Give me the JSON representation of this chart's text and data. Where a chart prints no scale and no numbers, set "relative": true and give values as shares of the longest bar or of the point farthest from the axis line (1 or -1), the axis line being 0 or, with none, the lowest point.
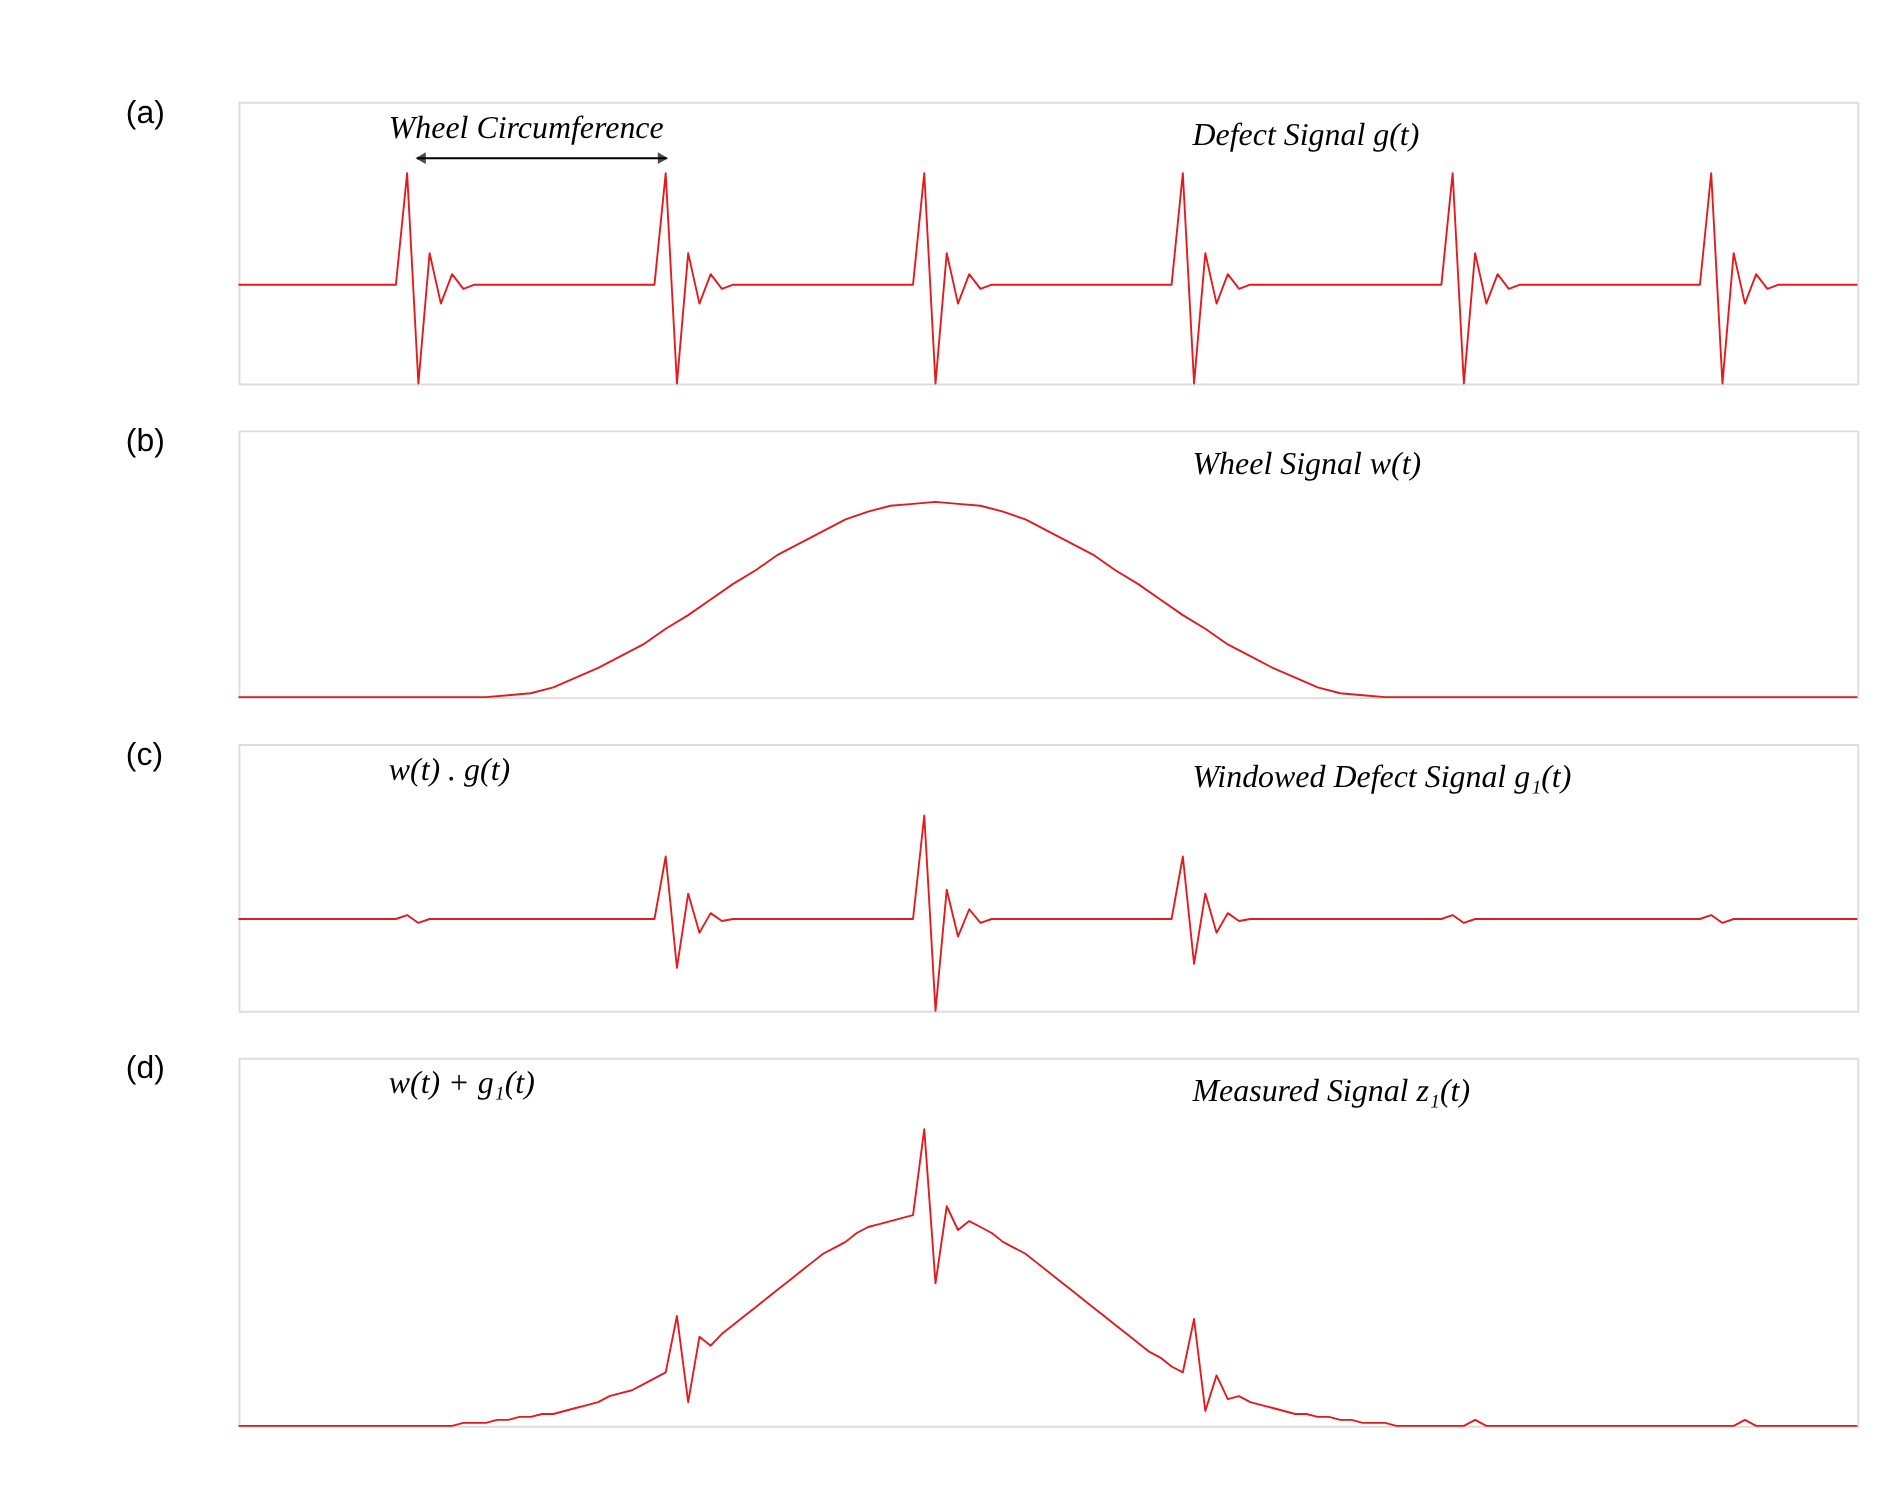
{
  "chart_data": [
    {
      "type": "line",
      "title": "(a)",
      "relative": true,
      "annotations": [
        "Wheel Circumference",
        "Defect Signal g(t)"
      ],
      "categories": [
        null,
        null,
        null,
        null,
        null,
        null,
        null,
        null,
        null,
        null,
        null,
        null,
        null,
        null,
        null,
        null,
        null,
        null,
        null,
        null,
        null,
        null,
        null,
        null,
        null,
        null,
        null,
        null,
        null,
        null,
        null,
        null,
        null,
        null,
        null,
        null,
        null,
        null,
        null,
        null,
        null,
        null,
        null,
        null,
        null,
        null,
        null,
        null,
        null,
        null,
        null,
        null,
        null,
        null,
        null,
        null,
        null,
        null,
        null,
        null,
        null,
        null,
        null,
        null,
        null,
        null,
        null,
        null,
        null,
        null,
        null,
        null,
        null,
        null,
        null,
        null,
        null,
        null,
        null,
        null,
        null,
        null,
        null,
        null,
        null,
        null,
        null,
        null,
        null,
        null,
        null,
        null,
        null,
        null,
        null,
        null,
        null,
        null,
        null,
        null,
        null,
        null,
        null,
        null,
        null,
        null,
        null,
        null,
        null,
        null,
        null,
        null,
        null,
        null,
        null,
        null,
        null,
        null,
        null,
        null,
        null,
        null,
        null,
        null,
        null,
        null,
        null,
        null,
        null,
        null,
        null,
        null,
        null,
        null,
        null,
        null,
        null,
        null,
        null,
        null,
        null,
        null,
        null,
        null,
        null
      ],
      "color": "#e41a1c",
      "values": [
        0.47,
        0.47,
        0.47,
        0.47,
        0.47,
        0.47,
        0.47,
        0.47,
        0.47,
        0.47,
        0.47,
        0.47,
        0.47,
        0.47,
        0.47,
        1,
        0,
        0.62,
        0.38,
        0.52,
        0.45,
        0.47,
        0.47,
        0.47,
        0.47,
        0.47,
        0.47,
        0.47,
        0.47,
        0.47,
        0.47,
        0.47,
        0.47,
        0.47,
        0.47,
        0.47,
        0.47,
        0.47,
        1,
        0,
        0.62,
        0.38,
        0.52,
        0.45,
        0.47,
        0.47,
        0.47,
        0.47,
        0.47,
        0.47,
        0.47,
        0.47,
        0.47,
        0.47,
        0.47,
        0.47,
        0.47,
        0.47,
        0.47,
        0.47,
        0.47,
        1,
        0,
        0.62,
        0.38,
        0.52,
        0.45,
        0.47,
        0.47,
        0.47,
        0.47,
        0.47,
        0.47,
        0.47,
        0.47,
        0.47,
        0.47,
        0.47,
        0.47,
        0.47,
        0.47,
        0.47,
        0.47,
        0.47,
        1,
        0,
        0.62,
        0.38,
        0.52,
        0.45,
        0.47,
        0.47,
        0.47,
        0.47,
        0.47,
        0.47,
        0.47,
        0.47,
        0.47,
        0.47,
        0.47,
        0.47,
        0.47,
        0.47,
        0.47,
        0.47,
        0.47,
        0.47,
        1,
        0,
        0.62,
        0.38,
        0.52,
        0.45,
        0.47,
        0.47,
        0.47,
        0.47,
        0.47,
        0.47,
        0.47,
        0.47,
        0.47,
        0.47,
        0.47,
        0.47,
        0.47,
        0.47,
        0.47,
        0.47,
        0.47,
        1,
        0,
        0.62,
        0.38,
        0.52,
        0.45,
        0.47,
        0.47,
        0.47,
        0.47,
        0.47,
        0.47,
        0.47,
        0.47
      ]
    },
    {
      "type": "line",
      "title": "(b)",
      "relative": true,
      "annotations": [
        "Wheel Signal w(t)"
      ],
      "categories": [
        null,
        null,
        null,
        null,
        null,
        null,
        null,
        null,
        null,
        null,
        null,
        null,
        null,
        null,
        null,
        null,
        null,
        null,
        null,
        null,
        null,
        null,
        null,
        null,
        null,
        null,
        null,
        null,
        null,
        null,
        null,
        null,
        null,
        null,
        null,
        null,
        null,
        null,
        null,
        null,
        null,
        null,
        null,
        null,
        null,
        null,
        null,
        null,
        null,
        null,
        null,
        null,
        null,
        null,
        null,
        null,
        null,
        null,
        null,
        null,
        null,
        null,
        null,
        null,
        null,
        null,
        null,
        null,
        null,
        null,
        null,
        null,
        null
      ],
      "color": "#e41a1c",
      "values": [
        0,
        0,
        0,
        0,
        0,
        0,
        0,
        0,
        0,
        0,
        0,
        0,
        0.01,
        0.02,
        0.05,
        0.1,
        0.15,
        0.21,
        0.27,
        0.35,
        0.42,
        0.5,
        0.58,
        0.65,
        0.73,
        0.79,
        0.85,
        0.91,
        0.95,
        0.98,
        0.99,
        1,
        0.99,
        0.98,
        0.95,
        0.91,
        0.85,
        0.79,
        0.73,
        0.65,
        0.58,
        0.5,
        0.42,
        0.35,
        0.27,
        0.21,
        0.15,
        0.1,
        0.05,
        0.02,
        0.01,
        0,
        0,
        0,
        0,
        0,
        0,
        0,
        0,
        0,
        0,
        0,
        0,
        0,
        0,
        0,
        0,
        0,
        0,
        0,
        0,
        0,
        0
      ]
    },
    {
      "type": "line",
      "title": "(c)",
      "relative": true,
      "annotations": [
        "w(t) . g(t)",
        "Windowed Defect Signal g₁(t)"
      ],
      "categories": [
        null,
        null,
        null,
        null,
        null,
        null,
        null,
        null,
        null,
        null,
        null,
        null,
        null,
        null,
        null,
        null,
        null,
        null,
        null,
        null,
        null,
        null,
        null,
        null,
        null,
        null,
        null,
        null,
        null,
        null,
        null,
        null,
        null,
        null,
        null,
        null,
        null,
        null,
        null,
        null,
        null,
        null,
        null,
        null,
        null,
        null,
        null,
        null,
        null,
        null,
        null,
        null,
        null,
        null,
        null,
        null,
        null,
        null,
        null,
        null,
        null,
        null,
        null,
        null,
        null,
        null,
        null,
        null,
        null,
        null,
        null,
        null,
        null,
        null,
        null,
        null,
        null,
        null,
        null,
        null,
        null,
        null,
        null,
        null,
        null,
        null,
        null,
        null,
        null,
        null,
        null,
        null,
        null,
        null,
        null,
        null,
        null,
        null,
        null,
        null,
        null,
        null,
        null,
        null,
        null,
        null,
        null,
        null,
        null,
        null,
        null,
        null,
        null,
        null,
        null,
        null,
        null,
        null,
        null,
        null,
        null,
        null,
        null,
        null,
        null,
        null,
        null,
        null,
        null,
        null,
        null,
        null,
        null,
        null,
        null,
        null,
        null,
        null,
        null,
        null,
        null,
        null,
        null,
        null,
        null
      ],
      "color": "#e41a1c",
      "values": [
        0.47,
        0.47,
        0.47,
        0.47,
        0.47,
        0.47,
        0.47,
        0.47,
        0.47,
        0.47,
        0.47,
        0.47,
        0.47,
        0.47,
        0.47,
        0.49,
        0.45,
        0.47,
        0.47,
        0.47,
        0.47,
        0.47,
        0.47,
        0.47,
        0.47,
        0.47,
        0.47,
        0.47,
        0.47,
        0.47,
        0.47,
        0.47,
        0.47,
        0.47,
        0.47,
        0.47,
        0.47,
        0.47,
        0.79,
        0.22,
        0.6,
        0.4,
        0.5,
        0.46,
        0.47,
        0.47,
        0.47,
        0.47,
        0.47,
        0.47,
        0.47,
        0.47,
        0.47,
        0.47,
        0.47,
        0.47,
        0.47,
        0.47,
        0.47,
        0.47,
        0.47,
        1,
        0,
        0.62,
        0.38,
        0.52,
        0.45,
        0.47,
        0.47,
        0.47,
        0.47,
        0.47,
        0.47,
        0.47,
        0.47,
        0.47,
        0.47,
        0.47,
        0.47,
        0.47,
        0.47,
        0.47,
        0.47,
        0.47,
        0.79,
        0.24,
        0.6,
        0.4,
        0.5,
        0.46,
        0.47,
        0.47,
        0.47,
        0.47,
        0.47,
        0.47,
        0.47,
        0.47,
        0.47,
        0.47,
        0.47,
        0.47,
        0.47,
        0.47,
        0.47,
        0.47,
        0.47,
        0.47,
        0.49,
        0.45,
        0.47,
        0.47,
        0.47,
        0.47,
        0.47,
        0.47,
        0.47,
        0.47,
        0.47,
        0.47,
        0.47,
        0.47,
        0.47,
        0.47,
        0.47,
        0.47,
        0.47,
        0.47,
        0.47,
        0.47,
        0.47,
        0.49,
        0.45,
        0.47,
        0.47,
        0.47,
        0.47,
        0.47,
        0.47,
        0.47,
        0.47,
        0.47,
        0.47,
        0.47,
        0.47
      ]
    },
    {
      "type": "line",
      "title": "(d)",
      "relative": true,
      "annotations": [
        "w(t) + g₁(t)",
        "Measured Signal z₁(t)"
      ],
      "categories": [
        null,
        null,
        null,
        null,
        null,
        null,
        null,
        null,
        null,
        null,
        null,
        null,
        null,
        null,
        null,
        null,
        null,
        null,
        null,
        null,
        null,
        null,
        null,
        null,
        null,
        null,
        null,
        null,
        null,
        null,
        null,
        null,
        null,
        null,
        null,
        null,
        null,
        null,
        null,
        null,
        null,
        null,
        null,
        null,
        null,
        null,
        null,
        null,
        null,
        null,
        null,
        null,
        null,
        null,
        null,
        null,
        null,
        null,
        null,
        null,
        null,
        null,
        null,
        null,
        null,
        null,
        null,
        null,
        null,
        null,
        null,
        null,
        null,
        null,
        null,
        null,
        null,
        null,
        null,
        null,
        null,
        null,
        null,
        null,
        null,
        null,
        null,
        null,
        null,
        null,
        null,
        null,
        null,
        null,
        null,
        null,
        null,
        null,
        null,
        null,
        null,
        null,
        null,
        null,
        null,
        null,
        null,
        null,
        null,
        null,
        null,
        null,
        null,
        null,
        null,
        null,
        null,
        null,
        null,
        null,
        null,
        null,
        null,
        null,
        null,
        null,
        null,
        null,
        null,
        null,
        null,
        null,
        null,
        null,
        null,
        null,
        null,
        null,
        null,
        null,
        null,
        null,
        null,
        null,
        null
      ],
      "color": "#e41a1c",
      "values": [
        0,
        0,
        0,
        0,
        0,
        0,
        0,
        0,
        0,
        0,
        0,
        0,
        0,
        0,
        0,
        0,
        0,
        0,
        0,
        0,
        0.01,
        0.01,
        0.01,
        0.02,
        0.02,
        0.03,
        0.03,
        0.04,
        0.04,
        0.05,
        0.06,
        0.07,
        0.08,
        0.1,
        0.11,
        0.12,
        0.14,
        0.16,
        0.18,
        0.37,
        0.08,
        0.3,
        0.27,
        0.31,
        0.34,
        0.37,
        0.4,
        0.43,
        0.46,
        0.49,
        0.52,
        0.55,
        0.58,
        0.6,
        0.62,
        0.65,
        0.67,
        0.68,
        0.69,
        0.7,
        0.71,
        1,
        0.48,
        0.74,
        0.66,
        0.69,
        0.67,
        0.65,
        0.62,
        0.6,
        0.58,
        0.55,
        0.52,
        0.49,
        0.46,
        0.43,
        0.4,
        0.37,
        0.34,
        0.31,
        0.28,
        0.25,
        0.23,
        0.2,
        0.18,
        0.36,
        0.05,
        0.17,
        0.09,
        0.1,
        0.08,
        0.07,
        0.06,
        0.05,
        0.04,
        0.04,
        0.03,
        0.03,
        0.02,
        0.02,
        0.01,
        0.01,
        0.01,
        0,
        0,
        0,
        0,
        0,
        0,
        0,
        0.02,
        0,
        0,
        0,
        0,
        0,
        0,
        0,
        0,
        0,
        0,
        0,
        0,
        0,
        0,
        0,
        0,
        0,
        0,
        0,
        0,
        0,
        0,
        0,
        0.02,
        0,
        0,
        0,
        0,
        0,
        0,
        0,
        0,
        0,
        0
      ]
    }
  ]
}
